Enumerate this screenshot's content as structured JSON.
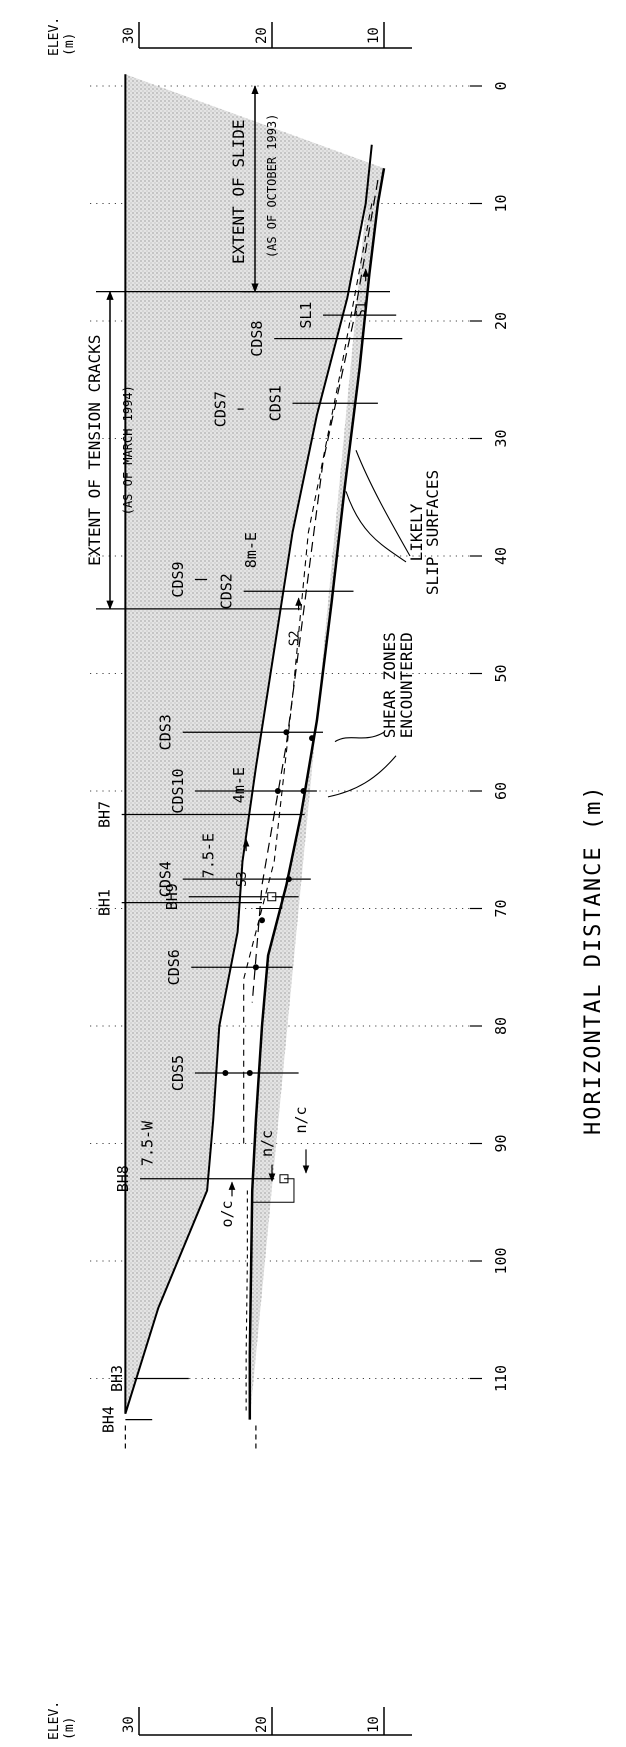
{
  "elev_axis": {
    "title_line1": "ELEV.",
    "title_line2": "(m)",
    "ticks": [
      {
        "value": 30,
        "label": "30"
      },
      {
        "value": 20,
        "label": "20"
      },
      {
        "value": 10,
        "label": "10"
      }
    ]
  },
  "distance_axis": {
    "title": "HORIZONTAL DISTANCE (m)",
    "ticks": [
      {
        "value": 0,
        "label": "0"
      },
      {
        "value": 10,
        "label": "10"
      },
      {
        "value": 20,
        "label": "20"
      },
      {
        "value": 30,
        "label": "30"
      },
      {
        "value": 40,
        "label": "40"
      },
      {
        "value": 50,
        "label": "50"
      },
      {
        "value": 60,
        "label": "60"
      },
      {
        "value": 70,
        "label": "70"
      },
      {
        "value": 80,
        "label": "80"
      },
      {
        "value": 90,
        "label": "90"
      },
      {
        "value": 100,
        "label": "100"
      },
      {
        "value": 110,
        "label": "110"
      }
    ]
  },
  "extents": {
    "slide_title": "EXTENT OF SLIDE",
    "slide_date": "(AS OF OCTOBER 1993)",
    "cracks_title": "EXTENT OF TENSION CRACKS",
    "cracks_date": "(AS OF MARCH 1994)"
  },
  "boreholes": [
    {
      "label": "BH4",
      "x": 113.5,
      "top": 31.2,
      "bottom": 29.0
    },
    {
      "label": "BH3",
      "x": 110.0,
      "top": 30.5,
      "bottom": 26.0
    },
    {
      "label": "BH8",
      "x": 93.0,
      "top": 30.0,
      "bottom": 19.0
    },
    {
      "label": "BH1",
      "x": 69.5,
      "top": 31.5,
      "bottom": 20.0
    },
    {
      "label": "BH9",
      "x": 69.0,
      "top": 26.0,
      "bottom": 17.0
    },
    {
      "label": "BH7",
      "x": 62.0,
      "top": 31.5,
      "bottom": 16.5
    }
  ],
  "inclinometers": [
    {
      "label": "CDS5",
      "x": 84.0,
      "top": 25.5,
      "bottom": 17.0
    },
    {
      "label": "CDS6",
      "x": 75.0,
      "top": 25.8,
      "bottom": 17.5
    },
    {
      "label": "CDS4",
      "x": 67.5,
      "top": 26.5,
      "bottom": 16.0
    },
    {
      "label": "CDS10",
      "x": 60.0,
      "top": 25.5,
      "bottom": 15.5
    },
    {
      "label": "CDS3",
      "x": 55.0,
      "top": 26.5,
      "bottom": 15.0
    },
    {
      "label": "CDS9",
      "x": 42.0,
      "top": 25.5,
      "bottom": 24.5
    },
    {
      "label": "CDS2",
      "x": 43.0,
      "top": 21.5,
      "bottom": 12.5
    },
    {
      "label": "CDS7",
      "x": 27.5,
      "top": 22.0,
      "bottom": 21.5
    },
    {
      "label": "CDS1",
      "x": 27.0,
      "top": 17.5,
      "bottom": 10.5
    },
    {
      "label": "CDS8",
      "x": 21.5,
      "top": 19.0,
      "bottom": 8.5
    },
    {
      "label": "SL1",
      "x": 19.5,
      "top": 15.0,
      "bottom": 9.0
    }
  ],
  "section_labels": [
    {
      "label": "8m-E",
      "x": 39.5,
      "elev": 19.5
    },
    {
      "label": "4m-E",
      "x": 59.5,
      "elev": 20.5
    },
    {
      "label": "7.5-E",
      "x": 65.5,
      "elev": 23.0
    },
    {
      "label": "7.5-W",
      "x": 90.0,
      "elev": 28.0
    }
  ],
  "slip_labels": [
    {
      "label": "S1",
      "x": 19.0,
      "elev": 11.5
    },
    {
      "label": "S2",
      "x": 47.0,
      "elev": 17.0
    },
    {
      "label": "S3",
      "x": 67.5,
      "elev": 21.3
    }
  ],
  "annotations": {
    "likely_slip_line1": "LIKELY",
    "likely_slip_line2": "SLIP SURFACES",
    "shear_zones_line1": "SHEAR ZONES",
    "shear_zones_line2": "ENCOUNTERED",
    "oc": "o/c",
    "nc_upper": "n/c",
    "nc_lower": "n/c"
  },
  "colors": {
    "ink": "#000000",
    "fill_stipple": "#cfcfcf",
    "paper": "#ffffff"
  }
}
